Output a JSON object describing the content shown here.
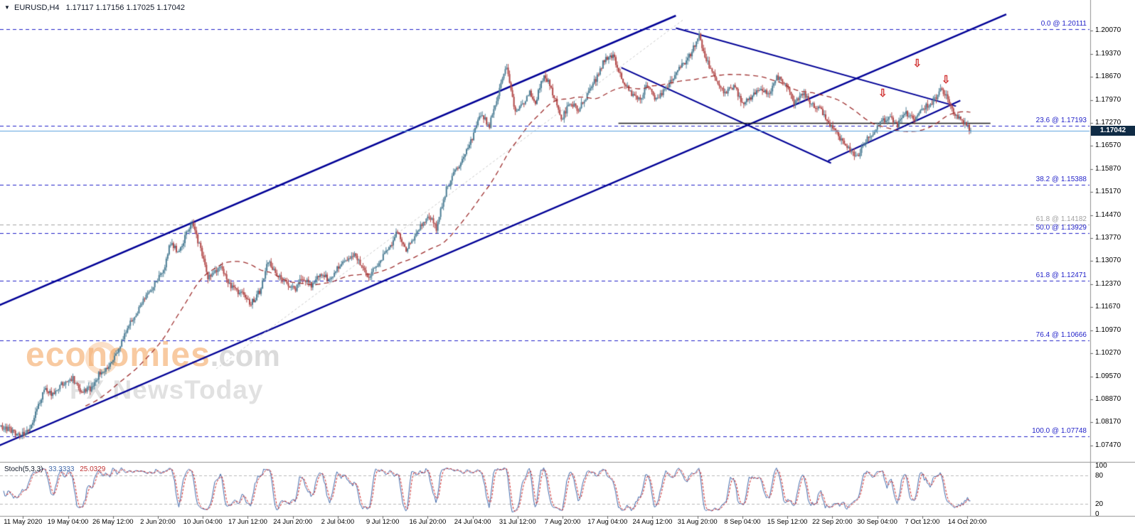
{
  "title": {
    "marker": "▼",
    "symbol_timeframe": "EURUSD,H4",
    "ohlc": "1.17117 1.17156 1.17025 1.17042"
  },
  "watermark": {
    "brand": "economies",
    "suffix": ".com",
    "subtitle": "FX NewsToday"
  },
  "colors": {
    "bull": "#4e7f96",
    "bear": "#b24848",
    "ma": "#9e2f2f",
    "trend": "#000096",
    "fib_blue": "#1f1fc8",
    "fib_gray": "#a0a0a0",
    "price_line": "#5aa0dc",
    "price_tag_bg": "#0f2b45",
    "stoch_k": "#4169aa",
    "stoch_d": "#cc2222",
    "support": "#1a1a1a",
    "background": "#ffffff"
  },
  "chart_data": {
    "type": "candlestick",
    "symbol": "EURUSD",
    "timeframe": "H4",
    "current_price": 1.17042,
    "current_price_display": "1.17042",
    "y_range": [
      1.071,
      1.204
    ],
    "candles_total": 676,
    "y_ticks": [
      "1.20070",
      "1.19370",
      "1.18670",
      "1.17970",
      "1.17270",
      "1.16570",
      "1.15870",
      "1.15170",
      "1.14470",
      "1.13770",
      "1.13070",
      "1.12370",
      "1.11670",
      "1.10970",
      "1.10270",
      "1.09570",
      "1.08870",
      "1.08170",
      "1.07470"
    ],
    "x_labels": [
      "11 May 2020",
      "19 May 04:00",
      "26 May 12:00",
      "2 Jun 20:00",
      "10 Jun 04:00",
      "17 Jun 12:00",
      "24 Jun 20:00",
      "2 Jul 04:00",
      "9 Jul 12:00",
      "16 Jul 20:00",
      "24 Jul 04:00",
      "31 Jul 12:00",
      "7 Aug 20:00",
      "17 Aug 04:00",
      "24 Aug 12:00",
      "31 Aug 20:00",
      "8 Sep 04:00",
      "15 Sep 12:00",
      "22 Sep 20:00",
      "30 Sep 04:00",
      "7 Oct 12:00",
      "14 Oct 20:00"
    ],
    "price_path": [
      [
        0,
        1.0805
      ],
      [
        8,
        1.079
      ],
      [
        14,
        1.0776
      ],
      [
        20,
        1.0798
      ],
      [
        26,
        1.0868
      ],
      [
        30,
        1.0917
      ],
      [
        36,
        1.0902
      ],
      [
        44,
        1.094
      ],
      [
        50,
        1.0952
      ],
      [
        56,
        1.0908
      ],
      [
        62,
        1.092
      ],
      [
        68,
        1.0962
      ],
      [
        76,
        1.0992
      ],
      [
        84,
        1.106
      ],
      [
        88,
        1.1101
      ],
      [
        92,
        1.1134
      ],
      [
        98,
        1.118
      ],
      [
        106,
        1.123
      ],
      [
        114,
        1.1291
      ],
      [
        118,
        1.1365
      ],
      [
        124,
        1.133
      ],
      [
        130,
        1.1405
      ],
      [
        133,
        1.1422
      ],
      [
        138,
        1.1355
      ],
      [
        144,
        1.1256
      ],
      [
        152,
        1.129
      ],
      [
        160,
        1.123
      ],
      [
        168,
        1.1205
      ],
      [
        174,
        1.1177
      ],
      [
        180,
        1.1215
      ],
      [
        186,
        1.1308
      ],
      [
        192,
        1.127
      ],
      [
        198,
        1.1245
      ],
      [
        204,
        1.1219
      ],
      [
        210,
        1.1258
      ],
      [
        216,
        1.1234
      ],
      [
        222,
        1.127
      ],
      [
        228,
        1.1252
      ],
      [
        234,
        1.1282
      ],
      [
        240,
        1.1308
      ],
      [
        246,
        1.133
      ],
      [
        252,
        1.1284
      ],
      [
        256,
        1.1254
      ],
      [
        262,
        1.13
      ],
      [
        270,
        1.1345
      ],
      [
        276,
        1.1396
      ],
      [
        282,
        1.134
      ],
      [
        288,
        1.138
      ],
      [
        294,
        1.1428
      ],
      [
        300,
        1.144
      ],
      [
        303,
        1.1402
      ],
      [
        306,
        1.1465
      ],
      [
        310,
        1.1526
      ],
      [
        316,
        1.158
      ],
      [
        322,
        1.1625
      ],
      [
        326,
        1.1656
      ],
      [
        330,
        1.1705
      ],
      [
        334,
        1.1752
      ],
      [
        340,
        1.172
      ],
      [
        344,
        1.178
      ],
      [
        348,
        1.1847
      ],
      [
        352,
        1.1902
      ],
      [
        355,
        1.183
      ],
      [
        358,
        1.1762
      ],
      [
        362,
        1.178
      ],
      [
        368,
        1.182
      ],
      [
        372,
        1.179
      ],
      [
        378,
        1.1878
      ],
      [
        382,
        1.184
      ],
      [
        386,
        1.1795
      ],
      [
        390,
        1.1738
      ],
      [
        396,
        1.179
      ],
      [
        402,
        1.1765
      ],
      [
        408,
        1.1813
      ],
      [
        414,
        1.186
      ],
      [
        420,
        1.192
      ],
      [
        426,
        1.1934
      ],
      [
        430,
        1.188
      ],
      [
        434,
        1.1845
      ],
      [
        438,
        1.182
      ],
      [
        444,
        1.1797
      ],
      [
        450,
        1.184
      ],
      [
        456,
        1.1795
      ],
      [
        462,
        1.1831
      ],
      [
        468,
        1.1865
      ],
      [
        474,
        1.1903
      ],
      [
        480,
        1.1935
      ],
      [
        486,
        1.1998
      ],
      [
        489,
        1.194
      ],
      [
        492,
        1.1912
      ],
      [
        498,
        1.1852
      ],
      [
        504,
        1.182
      ],
      [
        510,
        1.184
      ],
      [
        516,
        1.179
      ],
      [
        522,
        1.1801
      ],
      [
        528,
        1.1835
      ],
      [
        534,
        1.1815
      ],
      [
        540,
        1.1865
      ],
      [
        546,
        1.1847
      ],
      [
        552,
        1.179
      ],
      [
        558,
        1.182
      ],
      [
        564,
        1.1785
      ],
      [
        570,
        1.1772
      ],
      [
        576,
        1.173
      ],
      [
        582,
        1.169
      ],
      [
        588,
        1.1655
      ],
      [
        594,
        1.1631
      ],
      [
        597,
        1.1618
      ],
      [
        600,
        1.1665
      ],
      [
        606,
        1.1695
      ],
      [
        612,
        1.1726
      ],
      [
        618,
        1.1748
      ],
      [
        624,
        1.172
      ],
      [
        630,
        1.176
      ],
      [
        636,
        1.1733
      ],
      [
        642,
        1.177
      ],
      [
        648,
        1.179
      ],
      [
        654,
        1.1826
      ],
      [
        658,
        1.1805
      ],
      [
        662,
        1.177
      ],
      [
        666,
        1.1745
      ],
      [
        670,
        1.1725
      ],
      [
        675,
        1.1704
      ]
    ],
    "fib_levels": [
      {
        "label": "0.0 @ 1.20111",
        "price": 1.20111,
        "color": "#1f1fc8"
      },
      {
        "label": "23.6 @ 1.17193",
        "price": 1.17193,
        "color": "#1f1fc8"
      },
      {
        "label": "38.2 @ 1.15388",
        "price": 1.15388,
        "color": "#1f1fc8"
      },
      {
        "label": "61.8 @ 1.14182",
        "price": 1.14182,
        "color": "#a0a0a0"
      },
      {
        "label": "50.0 @ 1.13929",
        "price": 1.13929,
        "color": "#1f1fc8"
      },
      {
        "label": "61.8 @ 1.12471",
        "price": 1.12471,
        "color": "#1f1fc8"
      },
      {
        "label": "76.4 @ 1.10666",
        "price": 1.10666,
        "color": "#1f1fc8"
      },
      {
        "label": "100.0 @ 1.07748",
        "price": 1.07748,
        "color": "#1f1fc8"
      }
    ],
    "trendlines": [
      {
        "name": "ascending-channel-upper",
        "i1": -10,
        "p1": 1.1156,
        "i2": 470,
        "p2": 1.2053,
        "width": 2.5
      },
      {
        "name": "ascending-channel-lower",
        "i1": -10,
        "p1": 1.073,
        "i2": 700,
        "p2": 1.2057,
        "width": 2.5
      },
      {
        "name": "descending-channel-upper",
        "i1": 470,
        "p1": 1.2015,
        "i2": 665,
        "p2": 1.1778,
        "width": 2
      },
      {
        "name": "descending-channel-lower",
        "i1": 432,
        "p1": 1.1895,
        "i2": 578,
        "p2": 1.1605,
        "width": 2
      },
      {
        "name": "rising-support-line",
        "i1": 576,
        "p1": 1.1612,
        "i2": 668,
        "p2": 1.1795,
        "width": 2
      },
      {
        "name": "gray-median-line",
        "i1": 150,
        "p1": 1.098,
        "i2": 475,
        "p2": 1.204,
        "width": 1,
        "color": "#c8c8c8",
        "dash": [
          3,
          3
        ]
      }
    ],
    "support_line": {
      "price": 1.1726,
      "i1": 430,
      "i2": 689
    },
    "arrows": [
      {
        "i": 614,
        "price": 1.18
      },
      {
        "i": 638,
        "price": 1.1892
      },
      {
        "i": 658,
        "price": 1.1842
      }
    ],
    "indicator_panel": {
      "name": "Stoch(5,3,3)",
      "k": "33.3333",
      "d": "25.0329",
      "y_ticks": [
        "100",
        "80",
        "20",
        "0"
      ],
      "levels": [
        80,
        20
      ]
    }
  },
  "annotations": {
    "arrow_glyph": "⇩"
  }
}
